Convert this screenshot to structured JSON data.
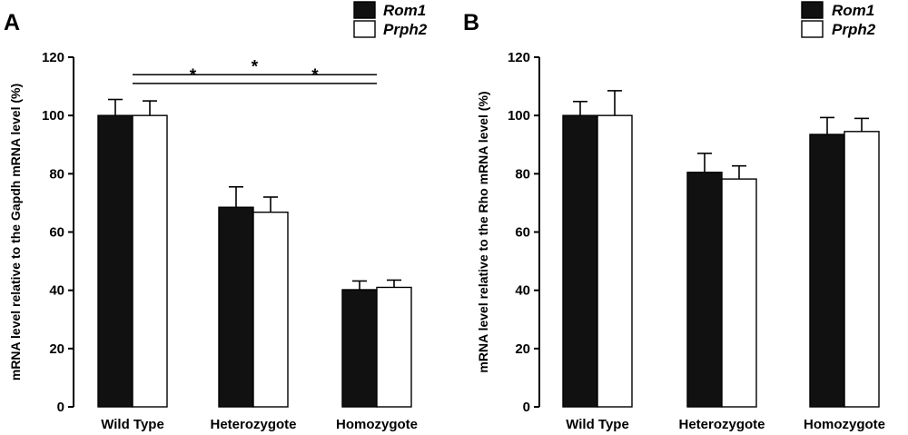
{
  "chart_data": [
    {
      "panel": "A",
      "type": "bar",
      "ylabel": "mRNA level relative to the Gapdh  mRNA level (%)",
      "xlabel": "",
      "ylim": [
        0,
        120
      ],
      "yticks": [
        0,
        20,
        40,
        60,
        80,
        100,
        120
      ],
      "categories": [
        "Wild Type",
        "Heterozygote",
        "Homozygote"
      ],
      "series": [
        {
          "name": "Rom1",
          "color": "#111111",
          "values": [
            100,
            68.5,
            40.2
          ],
          "errors": [
            5.5,
            7.0,
            3.0
          ]
        },
        {
          "name": "Prph2",
          "color": "#ffffff",
          "values": [
            100,
            66.8,
            41.0
          ],
          "errors": [
            5.0,
            5.2,
            2.5
          ]
        }
      ],
      "legend_placement": "top-right",
      "annotations": [
        {
          "label": "*",
          "from": "Wild Type",
          "to": "Homozygote",
          "y": 114
        },
        {
          "label": "*",
          "from": "Wild Type",
          "to": "Heterozygote",
          "y": 111
        },
        {
          "label": "*",
          "from": "Heterozygote",
          "to": "Homozygote",
          "y": 111
        }
      ]
    },
    {
      "panel": "B",
      "type": "bar",
      "ylabel": "mRNA level relative to the Rho  mRNA level (%)",
      "xlabel": "",
      "ylim": [
        0,
        120
      ],
      "yticks": [
        0,
        20,
        40,
        60,
        80,
        100,
        120
      ],
      "categories": [
        "Wild Type",
        "Heterozygote",
        "Homozygote"
      ],
      "series": [
        {
          "name": "Rom1",
          "color": "#111111",
          "values": [
            100,
            80.5,
            93.5
          ],
          "errors": [
            4.8,
            6.5,
            5.8
          ]
        },
        {
          "name": "Prph2",
          "color": "#ffffff",
          "values": [
            100,
            78.2,
            94.5
          ],
          "errors": [
            8.5,
            4.5,
            4.5
          ]
        }
      ],
      "legend_placement": "top-right",
      "annotations": []
    }
  ]
}
